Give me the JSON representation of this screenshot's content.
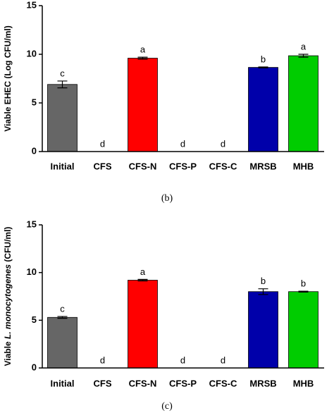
{
  "chart_data": [
    {
      "type": "bar",
      "ylabel": "Viable EHEC (Log CFU/ml)",
      "categories": [
        "Initial",
        "CFS",
        "CFS-N",
        "CFS-P",
        "CFS-C",
        "MRSB",
        "MHB"
      ],
      "values": [
        6.9,
        0,
        9.6,
        0,
        0,
        8.65,
        9.85
      ],
      "errors": [
        0.35,
        null,
        0.1,
        null,
        null,
        0.05,
        0.15
      ],
      "annotations": [
        "c",
        "d",
        "a",
        "d",
        "d",
        "b",
        "a"
      ],
      "colors": [
        "#666666",
        "#666666",
        "#ff0000",
        "#666666",
        "#666666",
        "#0000aa",
        "#00cc00"
      ],
      "ylim": [
        0,
        15
      ],
      "yticks": [
        0,
        5,
        10,
        15
      ],
      "caption": "(b)"
    },
    {
      "type": "bar",
      "ylabel": [
        "Viable ",
        "L. monocytogenes",
        " (CFU/ml)"
      ],
      "categories": [
        "Initial",
        "CFS",
        "CFS-N",
        "CFS-P",
        "CFS-C",
        "MRSB",
        "MHB"
      ],
      "values": [
        5.3,
        0,
        9.2,
        0,
        0,
        8.0,
        8.0
      ],
      "errors": [
        0.1,
        null,
        0.08,
        null,
        null,
        0.3,
        0.05
      ],
      "annotations": [
        "c",
        "d",
        "a",
        "d",
        "d",
        "b",
        "b"
      ],
      "colors": [
        "#666666",
        "#666666",
        "#ff0000",
        "#666666",
        "#666666",
        "#0000aa",
        "#00cc00"
      ],
      "ylim": [
        0,
        15
      ],
      "yticks": [
        0,
        5,
        10,
        15
      ],
      "caption": "(c)"
    }
  ]
}
